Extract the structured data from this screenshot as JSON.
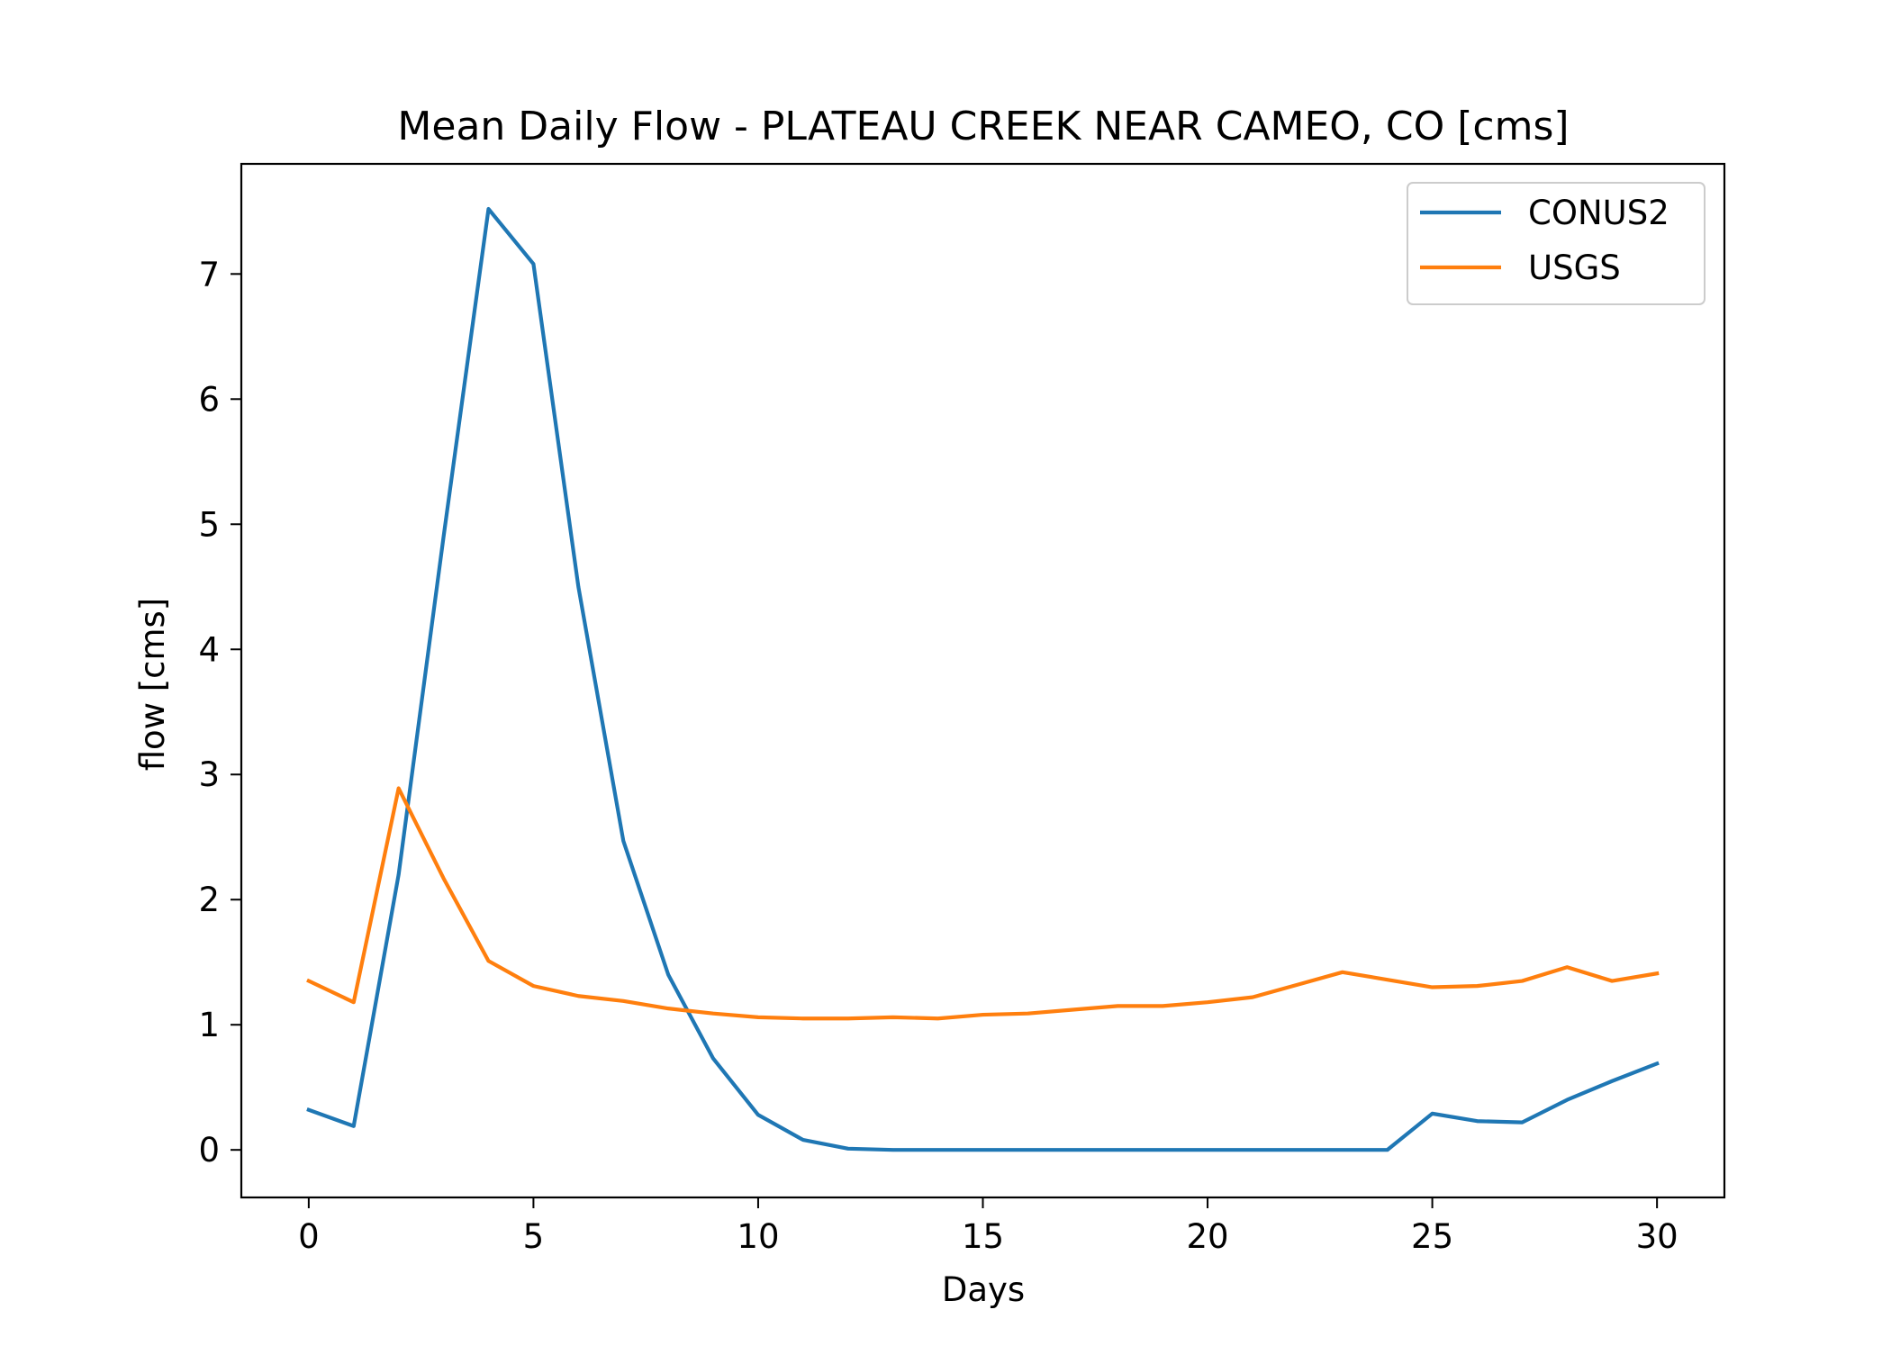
{
  "chart_data": {
    "type": "line",
    "title": "Mean Daily Flow - PLATEAU CREEK NEAR CAMEO, CO [cms]",
    "xlabel": "Days",
    "ylabel": "flow [cms]",
    "xlim": [
      -1.5,
      31.5
    ],
    "ylim": [
      -0.38,
      7.88
    ],
    "xticks": [
      0,
      5,
      10,
      15,
      20,
      25,
      30
    ],
    "yticks": [
      0,
      1,
      2,
      3,
      4,
      5,
      6,
      7
    ],
    "grid": false,
    "legend_position": "top-right",
    "x": [
      0,
      1,
      2,
      3,
      4,
      5,
      6,
      7,
      8,
      9,
      10,
      11,
      12,
      13,
      14,
      15,
      16,
      17,
      18,
      19,
      20,
      21,
      22,
      23,
      24,
      25,
      26,
      27,
      28,
      29,
      30
    ],
    "series": [
      {
        "name": "CONUS2",
        "color": "#1f77b4",
        "values": [
          0.32,
          0.19,
          2.2,
          4.9,
          7.52,
          7.08,
          4.5,
          2.47,
          1.4,
          0.73,
          0.28,
          0.08,
          0.01,
          0.0,
          0.0,
          0.0,
          0.0,
          0.0,
          0.0,
          0.0,
          0.0,
          0.0,
          0.0,
          0.0,
          0.0,
          0.29,
          0.23,
          0.22,
          0.4,
          0.55,
          0.69
        ]
      },
      {
        "name": "USGS",
        "color": "#ff7f0e",
        "values": [
          1.35,
          1.18,
          2.89,
          2.17,
          1.51,
          1.31,
          1.23,
          1.19,
          1.13,
          1.09,
          1.06,
          1.05,
          1.05,
          1.06,
          1.05,
          1.08,
          1.09,
          1.12,
          1.15,
          1.15,
          1.18,
          1.22,
          1.32,
          1.42,
          1.36,
          1.3,
          1.31,
          1.35,
          1.46,
          1.35,
          1.41
        ]
      }
    ]
  }
}
